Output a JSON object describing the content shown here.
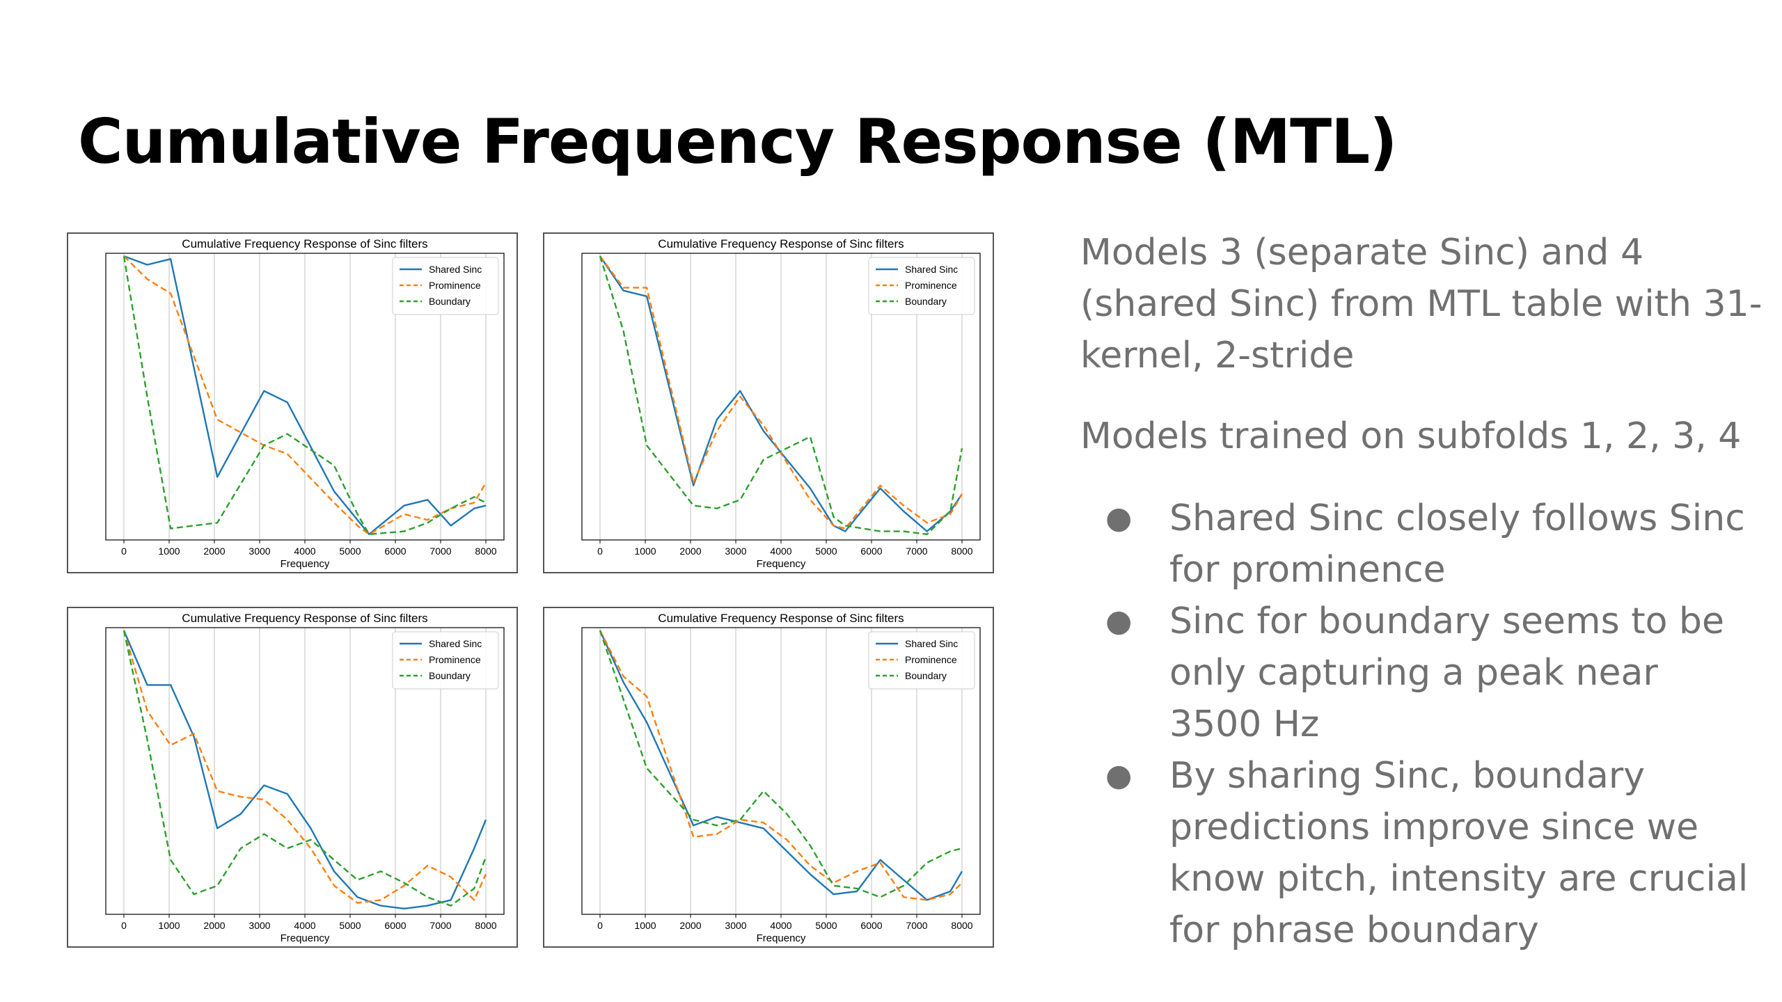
{
  "slide": {
    "title": "Cumulative Frequency Response (MTL)",
    "paragraph_1": "Models 3 (separate Sinc) and 4 (shared Sinc) from MTL table with 31-kernel, 2-stride",
    "paragraph_2": "Models trained on subfolds 1, 2, 3, 4",
    "bullets": [
      "Shared Sinc closely follows Sinc for prominence",
      "Sinc for boundary seems to be only capturing a peak near 3500 Hz",
      "By sharing Sinc, boundary predictions improve since we know pitch, intensity are crucial for phrase boundary"
    ],
    "bullet_symbol": "●"
  },
  "chart_data": [
    {
      "type": "line",
      "title": "Cumulative Frequency Response of Sinc filters",
      "xlabel": "Frequency",
      "ylabel": "",
      "xticks": [
        0,
        1000,
        2000,
        3000,
        4000,
        5000,
        6000,
        7000,
        8000
      ],
      "xlim": [
        -400,
        8400
      ],
      "ylim": [
        0,
        1
      ],
      "grid": "vertical",
      "legend": "top-right",
      "x": [
        0,
        516,
        1032,
        2065,
        3097,
        3613,
        4645,
        5161,
        5419,
        6194,
        6710,
        7226,
        7742,
        8000
      ],
      "series": [
        {
          "name": "Shared Sinc",
          "color": "#1f77b4",
          "values": [
            0.99,
            0.96,
            0.98,
            0.22,
            0.52,
            0.48,
            0.17,
            0.07,
            0.02,
            0.12,
            0.14,
            0.05,
            0.11,
            0.12
          ]
        },
        {
          "name": "Prominence",
          "color": "#ff7f0e",
          "values": [
            0.99,
            0.91,
            0.86,
            0.42,
            0.33,
            0.3,
            0.13,
            0.05,
            0.02,
            0.09,
            0.07,
            0.11,
            0.13,
            0.2
          ]
        },
        {
          "name": "Boundary",
          "color": "#2ca02c",
          "values": [
            0.99,
            0.5,
            0.04,
            0.06,
            0.33,
            0.37,
            0.26,
            0.09,
            0.02,
            0.03,
            0.06,
            0.11,
            0.15,
            0.13
          ]
        }
      ]
    },
    {
      "type": "line",
      "title": "Cumulative Frequency Response of Sinc filters",
      "xlabel": "Frequency",
      "ylabel": "",
      "xticks": [
        0,
        1000,
        2000,
        3000,
        4000,
        5000,
        6000,
        7000,
        8000
      ],
      "xlim": [
        -400,
        8400
      ],
      "ylim": [
        0,
        1
      ],
      "grid": "vertical",
      "legend": "top-right",
      "x": [
        0,
        516,
        1032,
        2065,
        2581,
        3097,
        3613,
        4645,
        5161,
        5419,
        6194,
        6710,
        7226,
        7742,
        8000
      ],
      "series": [
        {
          "name": "Shared Sinc",
          "color": "#1f77b4",
          "values": [
            0.99,
            0.87,
            0.85,
            0.19,
            0.42,
            0.52,
            0.38,
            0.18,
            0.05,
            0.03,
            0.18,
            0.1,
            0.03,
            0.1,
            0.16
          ]
        },
        {
          "name": "Prominence",
          "color": "#ff7f0e",
          "values": [
            0.99,
            0.88,
            0.88,
            0.2,
            0.38,
            0.5,
            0.4,
            0.14,
            0.05,
            0.04,
            0.19,
            0.12,
            0.06,
            0.09,
            0.16
          ]
        },
        {
          "name": "Boundary",
          "color": "#2ca02c",
          "values": [
            0.99,
            0.73,
            0.33,
            0.12,
            0.11,
            0.14,
            0.28,
            0.36,
            0.08,
            0.05,
            0.03,
            0.03,
            0.02,
            0.1,
            0.32
          ]
        }
      ]
    },
    {
      "type": "line",
      "title": "Cumulative Frequency Response of Sinc filters",
      "xlabel": "Frequency",
      "ylabel": "",
      "xticks": [
        0,
        1000,
        2000,
        3000,
        4000,
        5000,
        6000,
        7000,
        8000
      ],
      "xlim": [
        -400,
        8400
      ],
      "ylim": [
        0,
        1
      ],
      "grid": "vertical",
      "legend": "top-right",
      "x": [
        0,
        516,
        1032,
        1548,
        2065,
        2581,
        3097,
        3613,
        4129,
        4645,
        5161,
        5677,
        6194,
        6710,
        7226,
        7742,
        8000
      ],
      "series": [
        {
          "name": "Shared Sinc",
          "color": "#1f77b4",
          "values": [
            0.99,
            0.8,
            0.8,
            0.62,
            0.3,
            0.35,
            0.45,
            0.42,
            0.3,
            0.15,
            0.06,
            0.03,
            0.02,
            0.03,
            0.05,
            0.23,
            0.33
          ]
        },
        {
          "name": "Prominence",
          "color": "#ff7f0e",
          "values": [
            0.99,
            0.71,
            0.59,
            0.63,
            0.43,
            0.41,
            0.4,
            0.33,
            0.23,
            0.1,
            0.04,
            0.05,
            0.1,
            0.17,
            0.13,
            0.05,
            0.14
          ]
        },
        {
          "name": "Boundary",
          "color": "#2ca02c",
          "values": [
            0.99,
            0.61,
            0.19,
            0.07,
            0.1,
            0.23,
            0.28,
            0.23,
            0.26,
            0.19,
            0.12,
            0.15,
            0.11,
            0.06,
            0.03,
            0.09,
            0.2
          ]
        }
      ]
    },
    {
      "type": "line",
      "title": "Cumulative Frequency Response of Sinc filters",
      "xlabel": "Frequency",
      "ylabel": "",
      "xticks": [
        0,
        1000,
        2000,
        3000,
        4000,
        5000,
        6000,
        7000,
        8000
      ],
      "xlim": [
        -400,
        8400
      ],
      "ylim": [
        0,
        1
      ],
      "grid": "vertical",
      "legend": "top-right",
      "x": [
        0,
        516,
        1032,
        2065,
        2581,
        3097,
        3613,
        4129,
        4645,
        5161,
        5677,
        6194,
        6710,
        7226,
        7742,
        8000
      ],
      "series": [
        {
          "name": "Shared Sinc",
          "color": "#1f77b4",
          "values": [
            0.99,
            0.81,
            0.67,
            0.31,
            0.34,
            0.32,
            0.3,
            0.22,
            0.14,
            0.07,
            0.08,
            0.19,
            0.12,
            0.05,
            0.08,
            0.15
          ]
        },
        {
          "name": "Prominence",
          "color": "#ff7f0e",
          "values": [
            0.99,
            0.83,
            0.76,
            0.27,
            0.28,
            0.33,
            0.32,
            0.26,
            0.17,
            0.11,
            0.15,
            0.18,
            0.06,
            0.05,
            0.07,
            0.11
          ]
        },
        {
          "name": "Boundary",
          "color": "#2ca02c",
          "values": [
            0.99,
            0.75,
            0.51,
            0.33,
            0.31,
            0.33,
            0.43,
            0.35,
            0.24,
            0.1,
            0.09,
            0.06,
            0.1,
            0.18,
            0.22,
            0.23
          ]
        }
      ]
    }
  ]
}
